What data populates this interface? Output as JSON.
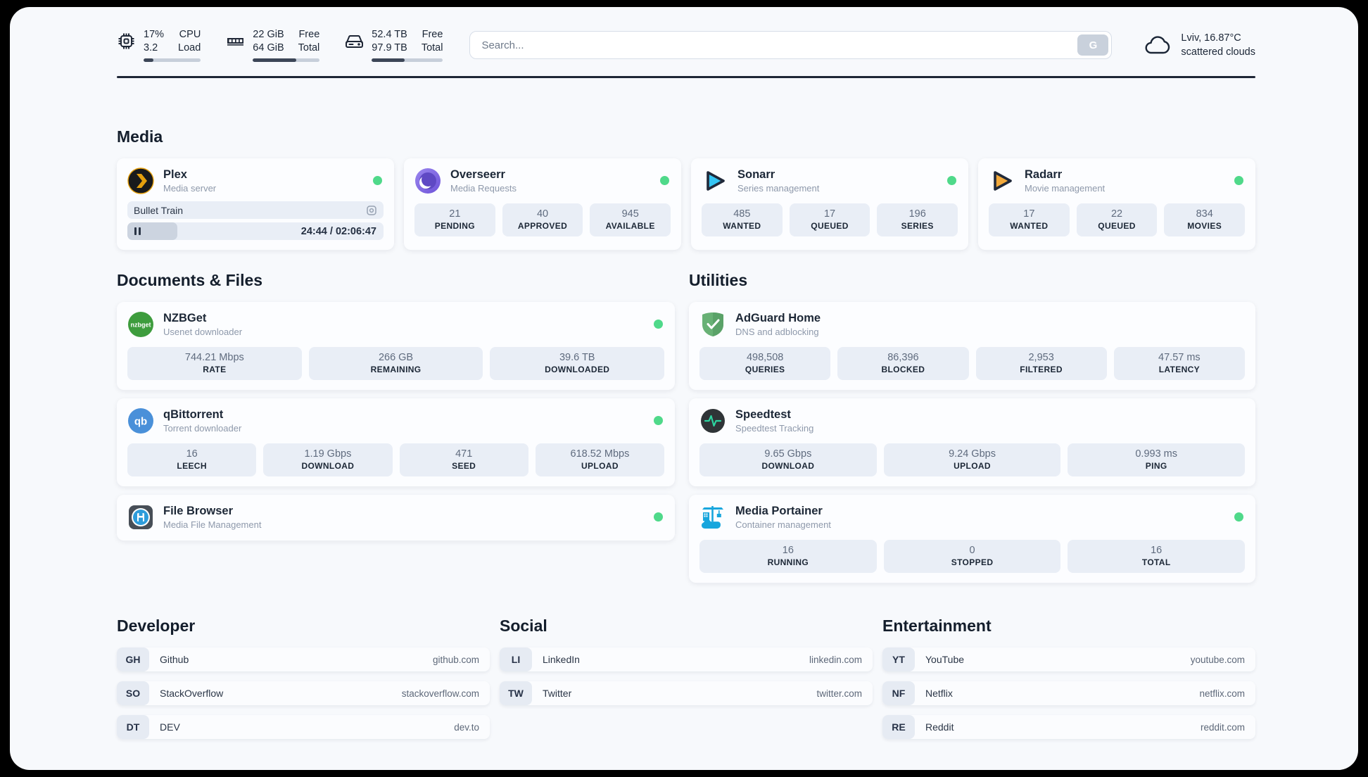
{
  "header": {
    "stats": [
      {
        "icon": "cpu-icon",
        "values": [
          "17%",
          "3.2"
        ],
        "labels": [
          "CPU",
          "Load"
        ],
        "progress": 17
      },
      {
        "icon": "ram-icon",
        "values": [
          "22 GiB",
          "64 GiB"
        ],
        "labels": [
          "Free",
          "Total"
        ],
        "progress": 65
      },
      {
        "icon": "disk-icon",
        "values": [
          "52.4 TB",
          "97.9 TB"
        ],
        "labels": [
          "Free",
          "Total"
        ],
        "progress": 46
      }
    ],
    "search": {
      "placeholder": "Search...",
      "button": "G"
    },
    "weather": {
      "location_temp": "Lviv, 16.87°C",
      "condition": "scattered clouds"
    }
  },
  "media": {
    "title": "Media",
    "plex": {
      "title": "Plex",
      "subtitle": "Media server",
      "now_playing": "Bullet Train",
      "time": "24:44 / 02:06:47",
      "progress": 19.5
    },
    "overseerr": {
      "title": "Overseerr",
      "subtitle": "Media Requests",
      "stats": [
        {
          "value": "21",
          "label": "PENDING"
        },
        {
          "value": "40",
          "label": "APPROVED"
        },
        {
          "value": "945",
          "label": "AVAILABLE"
        }
      ]
    },
    "sonarr": {
      "title": "Sonarr",
      "subtitle": "Series management",
      "stats": [
        {
          "value": "485",
          "label": "WANTED"
        },
        {
          "value": "17",
          "label": "QUEUED"
        },
        {
          "value": "196",
          "label": "SERIES"
        }
      ]
    },
    "radarr": {
      "title": "Radarr",
      "subtitle": "Movie management",
      "stats": [
        {
          "value": "17",
          "label": "WANTED"
        },
        {
          "value": "22",
          "label": "QUEUED"
        },
        {
          "value": "834",
          "label": "MOVIES"
        }
      ]
    }
  },
  "documents": {
    "title": "Documents & Files",
    "nzbget": {
      "title": "NZBGet",
      "subtitle": "Usenet downloader",
      "stats": [
        {
          "value": "744.21 Mbps",
          "label": "RATE"
        },
        {
          "value": "266 GB",
          "label": "REMAINING"
        },
        {
          "value": "39.6 TB",
          "label": "DOWNLOADED"
        }
      ]
    },
    "qbittorrent": {
      "title": "qBittorrent",
      "subtitle": "Torrent downloader",
      "stats": [
        {
          "value": "16",
          "label": "LEECH"
        },
        {
          "value": "1.19 Gbps",
          "label": "DOWNLOAD"
        },
        {
          "value": "471",
          "label": "SEED"
        },
        {
          "value": "618.52 Mbps",
          "label": "UPLOAD"
        }
      ]
    },
    "filebrowser": {
      "title": "File Browser",
      "subtitle": "Media File Management"
    }
  },
  "utilities": {
    "title": "Utilities",
    "adguard": {
      "title": "AdGuard Home",
      "subtitle": "DNS and adblocking",
      "stats": [
        {
          "value": "498,508",
          "label": "QUERIES"
        },
        {
          "value": "86,396",
          "label": "BLOCKED"
        },
        {
          "value": "2,953",
          "label": "FILTERED"
        },
        {
          "value": "47.57 ms",
          "label": "LATENCY"
        }
      ]
    },
    "speedtest": {
      "title": "Speedtest",
      "subtitle": "Speedtest Tracking",
      "stats": [
        {
          "value": "9.65 Gbps",
          "label": "DOWNLOAD"
        },
        {
          "value": "9.24 Gbps",
          "label": "UPLOAD"
        },
        {
          "value": "0.993 ms",
          "label": "PING"
        }
      ]
    },
    "portainer": {
      "title": "Media Portainer",
      "subtitle": "Container management",
      "stats": [
        {
          "value": "16",
          "label": "RUNNING"
        },
        {
          "value": "0",
          "label": "STOPPED"
        },
        {
          "value": "16",
          "label": "TOTAL"
        }
      ]
    }
  },
  "links": {
    "developer": {
      "title": "Developer",
      "items": [
        {
          "badge": "GH",
          "name": "Github",
          "url": "github.com"
        },
        {
          "badge": "SO",
          "name": "StackOverflow",
          "url": "stackoverflow.com"
        },
        {
          "badge": "DT",
          "name": "DEV",
          "url": "dev.to"
        }
      ]
    },
    "social": {
      "title": "Social",
      "items": [
        {
          "badge": "LI",
          "name": "LinkedIn",
          "url": "linkedin.com"
        },
        {
          "badge": "TW",
          "name": "Twitter",
          "url": "twitter.com"
        }
      ]
    },
    "entertainment": {
      "title": "Entertainment",
      "items": [
        {
          "badge": "YT",
          "name": "YouTube",
          "url": "youtube.com"
        },
        {
          "badge": "NF",
          "name": "Netflix",
          "url": "netflix.com"
        },
        {
          "badge": "RE",
          "name": "Reddit",
          "url": "reddit.com"
        }
      ]
    }
  },
  "colors": {
    "status_online": "#4fd98a",
    "divider": "#1f2736",
    "header_bar_fill": "#3c4657",
    "stat_box_bg": "#e9eef6",
    "page_bg": "#f7f9fc"
  }
}
